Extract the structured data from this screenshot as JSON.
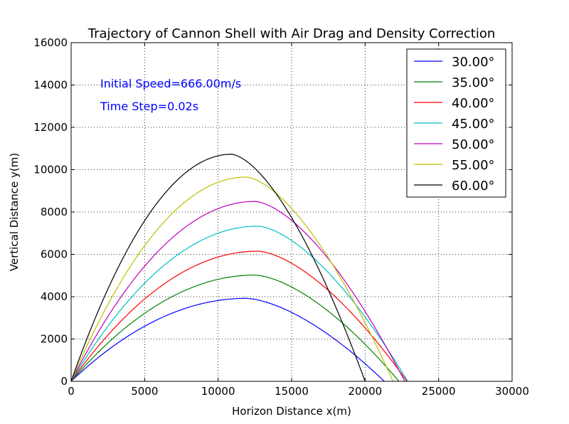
{
  "chart_data": {
    "type": "line",
    "title": "Trajectory of Cannon Shell with Air Drag and Density Correction",
    "xlabel": "Horizon Distance x(m)",
    "ylabel": "Vertical Distance y(m)",
    "xlim": [
      0,
      30000
    ],
    "ylim": [
      0,
      16000
    ],
    "xticks": [
      0,
      5000,
      10000,
      15000,
      20000,
      25000,
      30000
    ],
    "yticks": [
      0,
      2000,
      4000,
      6000,
      8000,
      10000,
      12000,
      14000,
      16000
    ],
    "grid": true,
    "legend_position": "top-right",
    "annotations": [
      "Initial Speed=666.00m/s",
      "Time Step=0.02s"
    ],
    "series": [
      {
        "name": "30.00°",
        "color": "#0000ff",
        "range": 21300,
        "apex_x": 11900,
        "apex_y": 3920
      },
      {
        "name": "35.00°",
        "color": "#008000",
        "range": 22300,
        "apex_x": 12500,
        "apex_y": 5020
      },
      {
        "name": "40.00°",
        "color": "#ff0000",
        "range": 22850,
        "apex_x": 12700,
        "apex_y": 6150
      },
      {
        "name": "45.00°",
        "color": "#00bfbf",
        "range": 22900,
        "apex_x": 12700,
        "apex_y": 7330
      },
      {
        "name": "50.00°",
        "color": "#bf00bf",
        "range": 22700,
        "apex_x": 12500,
        "apex_y": 8500
      },
      {
        "name": "55.00°",
        "color": "#bfbf00",
        "range": 21900,
        "apex_x": 11900,
        "apex_y": 9650
      },
      {
        "name": "60.00°",
        "color": "#000000",
        "range": 20000,
        "apex_x": 10900,
        "apex_y": 10730
      }
    ]
  }
}
